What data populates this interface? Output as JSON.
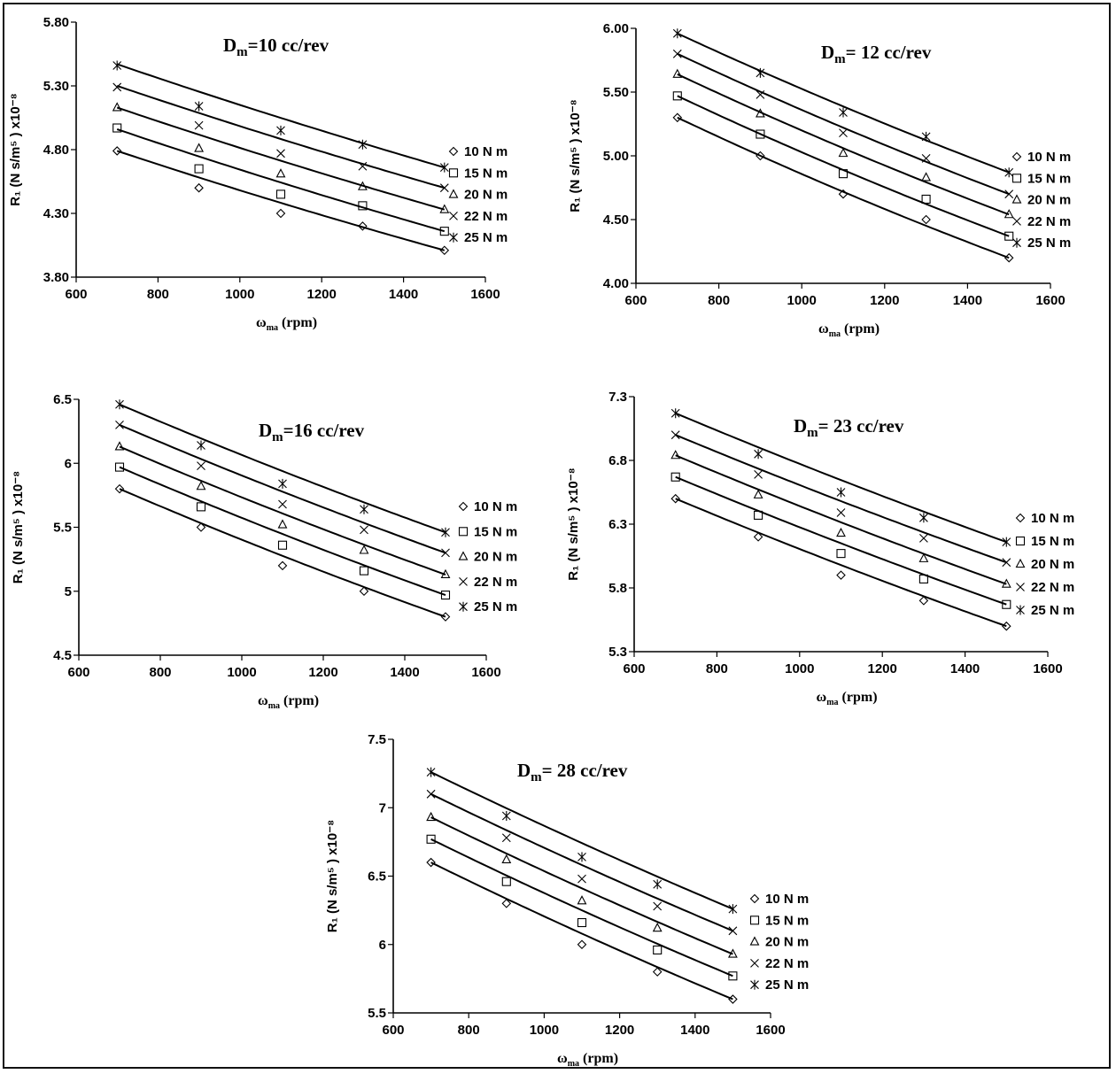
{
  "colors": {
    "line": "#000000",
    "background": "#ffffff",
    "frame": "#111111"
  },
  "chart_data": [
    {
      "type": "line",
      "title": "D",
      "title_sub": "m",
      "title_rest": "=10 cc/rev",
      "xlabel": "ω",
      "xlabel_sub": "ma",
      "xlabel_rest": " (rpm)",
      "ylabel": "R₁ (N s/m⁵ ) x10⁻⁸",
      "xlim": [
        600,
        1600
      ],
      "ylim": [
        3.8,
        5.8
      ],
      "xticks": [
        600,
        800,
        1000,
        1200,
        1400,
        1600
      ],
      "yticks": [
        3.8,
        4.3,
        4.8,
        5.3,
        5.8
      ],
      "ytick_labels": [
        "3.80",
        "4.30",
        "4.80",
        "5.30",
        "5.80"
      ],
      "x": [
        700,
        900,
        1100,
        1300,
        1500
      ],
      "series": [
        {
          "name": "10 N m",
          "marker": "diamond",
          "values": [
            4.79,
            4.5,
            4.3,
            4.2,
            4.01
          ],
          "fit_start": 4.79,
          "fit_end": 4.01
        },
        {
          "name": "15 N m",
          "marker": "square",
          "values": [
            4.97,
            4.65,
            4.45,
            4.36,
            4.16
          ],
          "fit_start": 4.96,
          "fit_end": 4.16
        },
        {
          "name": "20 N m",
          "marker": "triangle",
          "values": [
            5.13,
            4.81,
            4.61,
            4.51,
            4.33
          ],
          "fit_start": 5.13,
          "fit_end": 4.33
        },
        {
          "name": "22 N m",
          "marker": "x",
          "values": [
            5.29,
            4.99,
            4.77,
            4.67,
            4.5
          ],
          "fit_start": 5.3,
          "fit_end": 4.5
        },
        {
          "name": "25 N m",
          "marker": "star",
          "values": [
            5.46,
            5.14,
            4.95,
            4.84,
            4.66
          ],
          "fit_start": 5.47,
          "fit_end": 4.66
        }
      ]
    },
    {
      "type": "line",
      "title": "D",
      "title_sub": "m",
      "title_rest": "= 12 cc/rev",
      "xlabel": "ω",
      "xlabel_sub": "ma",
      "xlabel_rest": " (rpm)",
      "ylabel": "R₁ (N s/m⁵ ) x10⁻⁸",
      "xlim": [
        600,
        1600
      ],
      "ylim": [
        4.0,
        6.0
      ],
      "xticks": [
        600,
        800,
        1000,
        1200,
        1400,
        1600
      ],
      "yticks": [
        4.0,
        4.5,
        5.0,
        5.5,
        6.0
      ],
      "ytick_labels": [
        "4.00",
        "4.50",
        "5.00",
        "5.50",
        "6.00"
      ],
      "x": [
        700,
        900,
        1100,
        1300,
        1500
      ],
      "series": [
        {
          "name": "10 N m",
          "marker": "diamond",
          "values": [
            5.3,
            5.0,
            4.7,
            4.5,
            4.2
          ],
          "fit_start": 5.3,
          "fit_end": 4.2
        },
        {
          "name": "15 N m",
          "marker": "square",
          "values": [
            5.47,
            5.17,
            4.86,
            4.66,
            4.37
          ],
          "fit_start": 5.47,
          "fit_end": 4.37
        },
        {
          "name": "20 N m",
          "marker": "triangle",
          "values": [
            5.64,
            5.33,
            5.02,
            4.83,
            4.54
          ],
          "fit_start": 5.64,
          "fit_end": 4.54
        },
        {
          "name": "22 N m",
          "marker": "x",
          "values": [
            5.8,
            5.48,
            5.18,
            4.98,
            4.7
          ],
          "fit_start": 5.8,
          "fit_end": 4.7
        },
        {
          "name": "25 N m",
          "marker": "star",
          "values": [
            5.96,
            5.65,
            5.34,
            5.15,
            4.87
          ],
          "fit_start": 5.96,
          "fit_end": 4.87
        }
      ]
    },
    {
      "type": "line",
      "title": "D",
      "title_sub": "m",
      "title_rest": "=16 cc/rev",
      "xlabel": "ω",
      "xlabel_sub": "ma",
      "xlabel_rest": " (rpm)",
      "ylabel": "R₁ (N s/m⁵ ) x10⁻⁸",
      "xlim": [
        600,
        1600
      ],
      "ylim": [
        4.5,
        6.5
      ],
      "xticks": [
        600,
        800,
        1000,
        1200,
        1400,
        1600
      ],
      "yticks": [
        4.5,
        5,
        5.5,
        6,
        6.5
      ],
      "ytick_labels": [
        "4.5",
        "5",
        "5.5",
        "6",
        "6.5"
      ],
      "x": [
        700,
        900,
        1100,
        1300,
        1500
      ],
      "series": [
        {
          "name": "10 N m",
          "marker": "diamond",
          "values": [
            5.8,
            5.5,
            5.2,
            5.0,
            4.8
          ],
          "fit_start": 5.8,
          "fit_end": 4.8
        },
        {
          "name": "15 N m",
          "marker": "square",
          "values": [
            5.97,
            5.66,
            5.36,
            5.16,
            4.97
          ],
          "fit_start": 5.97,
          "fit_end": 4.97
        },
        {
          "name": "20 N m",
          "marker": "triangle",
          "values": [
            6.13,
            5.82,
            5.52,
            5.32,
            5.13
          ],
          "fit_start": 6.13,
          "fit_end": 5.13
        },
        {
          "name": "22 N m",
          "marker": "x",
          "values": [
            6.3,
            5.98,
            5.68,
            5.48,
            5.3
          ],
          "fit_start": 6.3,
          "fit_end": 5.3
        },
        {
          "name": "25 N m",
          "marker": "star",
          "values": [
            6.46,
            6.14,
            5.84,
            5.64,
            5.46
          ],
          "fit_start": 6.46,
          "fit_end": 5.46
        }
      ]
    },
    {
      "type": "line",
      "title": "D",
      "title_sub": "m",
      "title_rest": "= 23 cc/rev",
      "xlabel": "ω",
      "xlabel_sub": "ma",
      "xlabel_rest": " (rpm)",
      "ylabel": "R₁ (N s/m⁵ ) x10⁻⁸",
      "xlim": [
        600,
        1600
      ],
      "ylim": [
        5.3,
        7.3
      ],
      "xticks": [
        600,
        800,
        1000,
        1200,
        1400,
        1600
      ],
      "yticks": [
        5.3,
        5.8,
        6.3,
        6.8,
        7.3
      ],
      "ytick_labels": [
        "5.3",
        "5.8",
        "6.3",
        "6.8",
        "7.3"
      ],
      "x": [
        700,
        900,
        1100,
        1300,
        1500
      ],
      "series": [
        {
          "name": "10 N m",
          "marker": "diamond",
          "values": [
            6.5,
            6.2,
            5.9,
            5.7,
            5.5
          ],
          "fit_start": 6.5,
          "fit_end": 5.5
        },
        {
          "name": "15 N m",
          "marker": "square",
          "values": [
            6.67,
            6.37,
            6.07,
            5.87,
            5.67
          ],
          "fit_start": 6.67,
          "fit_end": 5.67
        },
        {
          "name": "20 N m",
          "marker": "triangle",
          "values": [
            6.84,
            6.53,
            6.23,
            6.03,
            5.83
          ],
          "fit_start": 6.84,
          "fit_end": 5.83
        },
        {
          "name": "22 N m",
          "marker": "x",
          "values": [
            7.0,
            6.69,
            6.39,
            6.19,
            6.0
          ],
          "fit_start": 7.0,
          "fit_end": 6.0
        },
        {
          "name": "25 N m",
          "marker": "star",
          "values": [
            7.17,
            6.85,
            6.55,
            6.35,
            6.16
          ],
          "fit_start": 7.17,
          "fit_end": 6.16
        }
      ]
    },
    {
      "type": "line",
      "title": "D",
      "title_sub": "m",
      "title_rest": "= 28 cc/rev",
      "xlabel": "ω",
      "xlabel_sub": "ma",
      "xlabel_rest": " (rpm)",
      "ylabel": "R₁ (N s/m⁵ ) x10⁻⁸",
      "xlim": [
        600,
        1600
      ],
      "ylim": [
        5.5,
        7.5
      ],
      "xticks": [
        600,
        800,
        1000,
        1200,
        1400,
        1600
      ],
      "yticks": [
        5.5,
        6,
        6.5,
        7,
        7.5
      ],
      "ytick_labels": [
        "5.5",
        "6",
        "6.5",
        "7",
        "7.5"
      ],
      "x": [
        700,
        900,
        1100,
        1300,
        1500
      ],
      "series": [
        {
          "name": "10 N m",
          "marker": "diamond",
          "values": [
            6.6,
            6.3,
            6.0,
            5.8,
            5.6
          ],
          "fit_start": 6.6,
          "fit_end": 5.6
        },
        {
          "name": "15 N m",
          "marker": "square",
          "values": [
            6.77,
            6.46,
            6.16,
            5.96,
            5.77
          ],
          "fit_start": 6.77,
          "fit_end": 5.77
        },
        {
          "name": "20 N m",
          "marker": "triangle",
          "values": [
            6.93,
            6.62,
            6.32,
            6.12,
            5.93
          ],
          "fit_start": 6.93,
          "fit_end": 5.93
        },
        {
          "name": "22 N m",
          "marker": "x",
          "values": [
            7.1,
            6.78,
            6.48,
            6.28,
            6.1
          ],
          "fit_start": 7.1,
          "fit_end": 6.1
        },
        {
          "name": "25 N m",
          "marker": "star",
          "values": [
            7.26,
            6.94,
            6.64,
            6.44,
            6.26
          ],
          "fit_start": 7.26,
          "fit_end": 6.26
        }
      ]
    }
  ]
}
